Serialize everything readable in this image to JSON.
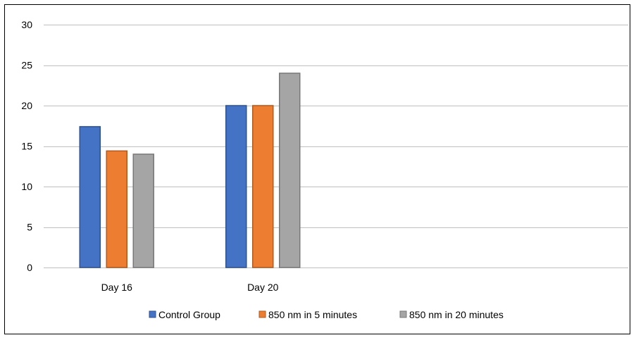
{
  "chart_data": {
    "type": "bar",
    "categories": [
      "Day 16",
      "Day 20"
    ],
    "series": [
      {
        "name": "Control Group",
        "values": [
          17.4,
          20
        ],
        "color": "#4472C4",
        "edge": "#2F528F"
      },
      {
        "name": "850 nm in 5 minutes",
        "values": [
          14.4,
          20
        ],
        "color": "#ED7D31",
        "edge": "#AE5A21"
      },
      {
        "name": "850 nm in 20 minutes",
        "values": [
          14,
          24
        ],
        "color": "#A5A5A5",
        "edge": "#787878"
      }
    ],
    "title": "",
    "xlabel": "",
    "ylabel": "",
    "ylim": [
      0,
      30
    ],
    "yticks": [
      0,
      5,
      10,
      15,
      20,
      25,
      30
    ],
    "grid": true,
    "legend": "bottom",
    "category_slots": 4,
    "gridline_color": "#BFBFBF"
  }
}
